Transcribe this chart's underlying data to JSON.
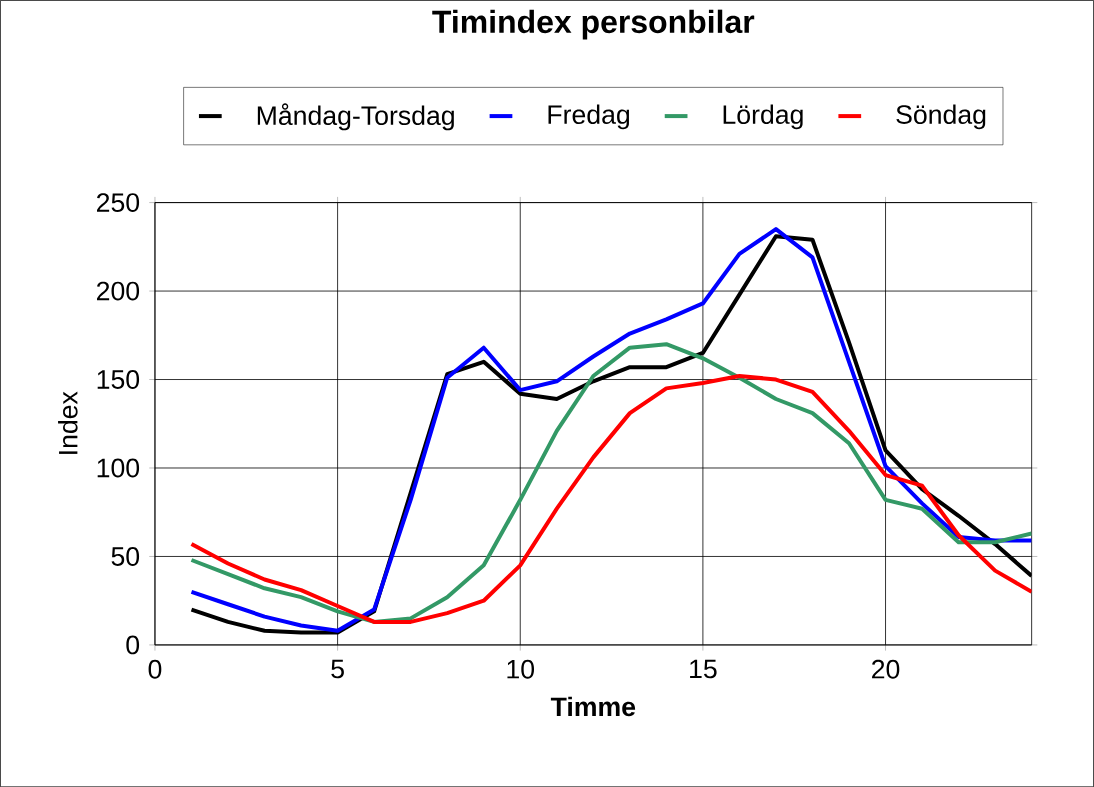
{
  "chart_data": {
    "type": "line",
    "title": "Timindex personbilar",
    "xlabel": "Timme",
    "ylabel": "Index",
    "x": [
      1,
      2,
      3,
      4,
      5,
      6,
      7,
      8,
      9,
      10,
      11,
      12,
      13,
      14,
      15,
      16,
      17,
      18,
      19,
      20,
      21,
      22,
      23,
      24
    ],
    "series": [
      {
        "name": "Måndag-Torsdag",
        "color": "#000000",
        "values": [
          20,
          13,
          8,
          7,
          7,
          19,
          86,
          153,
          160,
          142,
          139,
          149,
          157,
          157,
          165,
          198,
          231,
          229,
          171,
          110,
          88,
          73,
          57,
          39
        ]
      },
      {
        "name": "Fredag",
        "color": "#0000ff",
        "values": [
          30,
          23,
          16,
          11,
          8,
          20,
          82,
          151,
          168,
          144,
          149,
          163,
          176,
          184,
          193,
          221,
          235,
          219,
          160,
          101,
          80,
          61,
          59,
          59
        ]
      },
      {
        "name": "Lördag",
        "color": "#339966",
        "values": [
          48,
          40,
          32,
          27,
          19,
          13,
          15,
          27,
          45,
          82,
          121,
          152,
          168,
          170,
          162,
          151,
          139,
          131,
          114,
          82,
          77,
          58,
          58,
          63
        ]
      },
      {
        "name": "Söndag",
        "color": "#ff0000",
        "values": [
          57,
          46,
          37,
          31,
          22,
          13,
          13,
          18,
          25,
          45,
          77,
          106,
          131,
          145,
          148,
          152,
          150,
          143,
          121,
          96,
          90,
          62,
          42,
          30
        ]
      }
    ],
    "xlim": [
      0,
      24
    ],
    "xticks": [
      0,
      5,
      10,
      15,
      20
    ],
    "ylim": [
      0,
      250
    ],
    "yticks": [
      0,
      50,
      100,
      150,
      200,
      250
    ],
    "grid": true,
    "legend": "top",
    "marker": "none",
    "line_style": "solid"
  }
}
